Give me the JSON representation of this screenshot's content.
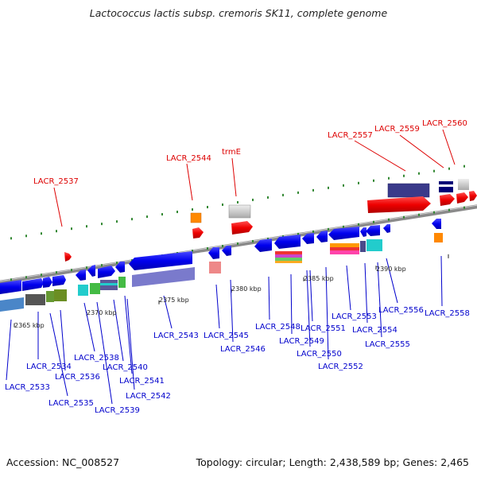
{
  "title": "Lactococcus lactis subsp. cremoris SK11, complete genome",
  "footer": {
    "accession": "Accession: NC_008527",
    "topology": "Topology: circular; Length: 2,438,589 bp; Genes: 2,465"
  },
  "kbp_labels": [
    "2365 kbp",
    "2370 kbp",
    "2375 kbp",
    "2380 kbp",
    "2385 kbp",
    "2390 kbp"
  ],
  "red_labels": [
    "LACR_2537",
    "LACR_2544",
    "trmE",
    "LACR_2557",
    "LACR_2559",
    "LACR_2560"
  ],
  "blue_labels": [
    "LACR_2533",
    "LACR_2534",
    "LACR_2535",
    "LACR_2536",
    "LACR_2538",
    "LACR_2539",
    "LACR_2540",
    "LACR_2541",
    "LACR_2542",
    "LACR_2543",
    "LACR_2545",
    "LACR_2546",
    "LACR_2548",
    "LACR_2549",
    "LACR_2550",
    "LACR_2551",
    "LACR_2552",
    "LACR_2553",
    "LACR_2554",
    "LACR_2555",
    "LACR_2556",
    "LACR_2558"
  ],
  "colors": {
    "forward_gene": "#0000ee",
    "label_red": "#dd0000",
    "label_blue": "#0000cc",
    "tick_green": "#338833",
    "backbone": "#8a8a8a",
    "rrna_red": "#ee0000"
  }
}
